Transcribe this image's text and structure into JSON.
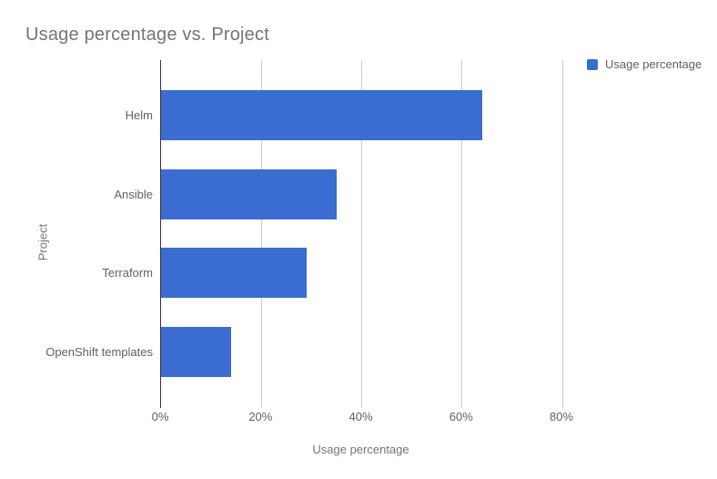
{
  "chart": {
    "title": "Usage percentage vs. Project",
    "legend": {
      "label": "Usage percentage"
    },
    "x_axis": {
      "title": "Usage percentage",
      "tick_labels": [
        "0%",
        "20%",
        "40%",
        "60%",
        "80%"
      ]
    },
    "y_axis": {
      "title": "Project"
    },
    "colors": {
      "bar": "#3b6cd1",
      "gridline": "#cccccc",
      "axis_line": "#333333",
      "title_text": "#757575",
      "label_text": "#616161"
    }
  },
  "chart_data": {
    "type": "bar",
    "orientation": "horizontal",
    "title": "Usage percentage vs. Project",
    "categories": [
      "Helm",
      "Ansible",
      "Terraform",
      "OpenShift templates"
    ],
    "series": [
      {
        "name": "Usage percentage",
        "values": [
          64,
          35,
          29,
          14
        ]
      }
    ],
    "xlabel": "Usage percentage",
    "ylabel": "Project",
    "xlim": [
      0,
      80
    ],
    "xticks": [
      0,
      20,
      40,
      60,
      80
    ],
    "xtick_labels": [
      "0%",
      "20%",
      "40%",
      "60%",
      "80%"
    ],
    "grid": true,
    "legend_position": "top-right",
    "bar_color": "#3b6cd1"
  }
}
